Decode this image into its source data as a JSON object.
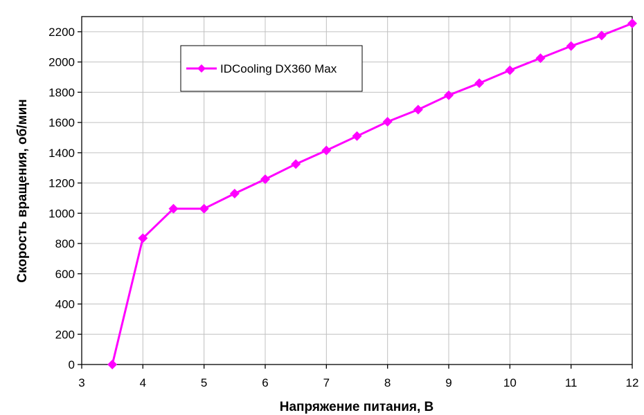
{
  "chart_data": {
    "type": "line",
    "xlabel": "Напряжение питания, В",
    "ylabel": "Скорость вращения, об/мин",
    "xlim": [
      3,
      12
    ],
    "ylim": [
      0,
      2300
    ],
    "x_ticks": [
      3,
      4,
      5,
      6,
      7,
      8,
      9,
      10,
      11,
      12
    ],
    "y_ticks": [
      0,
      200,
      400,
      600,
      800,
      1000,
      1200,
      1400,
      1600,
      1800,
      2000,
      2200
    ],
    "grid": true,
    "legend_position": "top-left",
    "series": [
      {
        "name": "IDCooling DX360 Max",
        "color": "#ff00ff",
        "marker": "diamond",
        "x": [
          3.5,
          4,
          4.5,
          5,
          5.5,
          6,
          6.5,
          7,
          7.5,
          8,
          8.5,
          9,
          9.5,
          10,
          10.5,
          11,
          11.5,
          12
        ],
        "y": [
          0,
          835,
          1030,
          1030,
          1130,
          1225,
          1325,
          1415,
          1510,
          1605,
          1685,
          1780,
          1860,
          1945,
          2025,
          2105,
          2175,
          2255
        ]
      }
    ]
  }
}
